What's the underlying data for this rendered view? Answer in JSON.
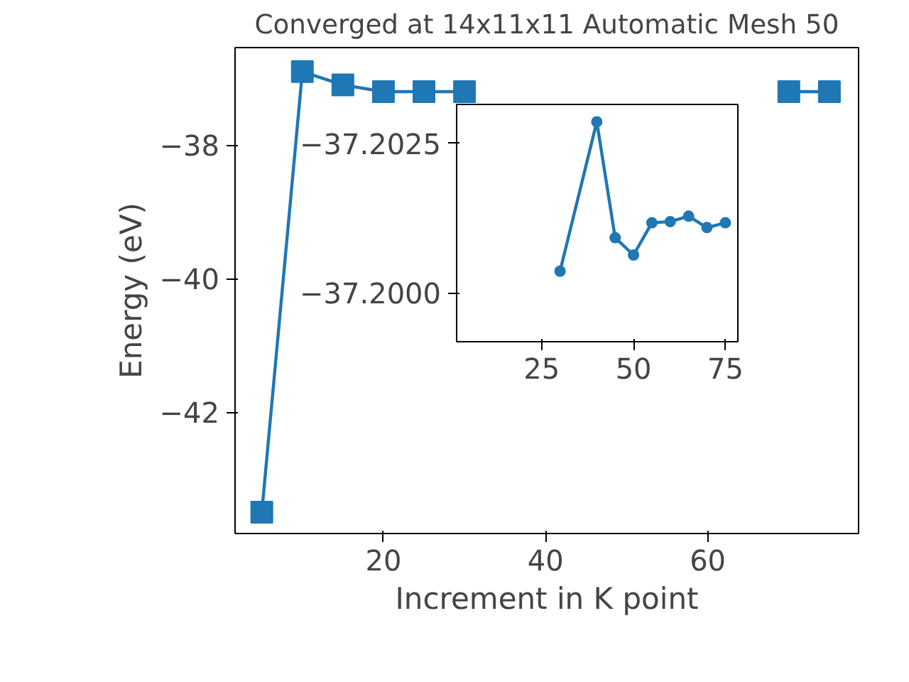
{
  "chart_data": [
    {
      "type": "line",
      "title": "Converged at 14x11x11 Automatic Mesh 50",
      "xlabel": "Increment in K point",
      "ylabel": "Energy (eV)",
      "x": [
        5,
        10,
        15,
        20,
        25,
        30,
        40,
        45,
        50,
        55,
        60,
        65,
        70,
        75
      ],
      "series": [
        {
          "color": "#1f77b4",
          "values": [
            -43.5,
            -36.9,
            -37.1,
            -37.2,
            -37.2,
            -37.2,
            null,
            null,
            null,
            null,
            null,
            null,
            -37.2,
            -37.2
          ]
        }
      ],
      "xlim": [
        1.7,
        78.6
      ],
      "ylim": [
        -43.82,
        -36.54
      ],
      "xticks": [
        20,
        40,
        60
      ],
      "yticks": [
        -42,
        -40,
        -38
      ],
      "marker": "square",
      "line_style": "solid",
      "grid": false
    },
    {
      "type": "line",
      "x": [
        30,
        40,
        45,
        50,
        55,
        60,
        65,
        70,
        75
      ],
      "series": [
        {
          "color": "#1f77b4",
          "values": [
            -37.20036,
            -37.20286,
            -37.20092,
            -37.20063,
            -37.20117,
            -37.20119,
            -37.20128,
            -37.20109,
            -37.20117
          ]
        }
      ],
      "xlim": [
        1.85,
        78.4
      ],
      "ylim": [
        -37.19918,
        -37.20315
      ],
      "xticks": [
        25,
        50,
        75
      ],
      "yticks": [
        {
          "value": -37.2025,
          "label": "−37.2025"
        },
        {
          "value": -37.2,
          "label": "−37.2000"
        }
      ],
      "marker": "circle",
      "line_style": "solid",
      "grid": false
    }
  ]
}
